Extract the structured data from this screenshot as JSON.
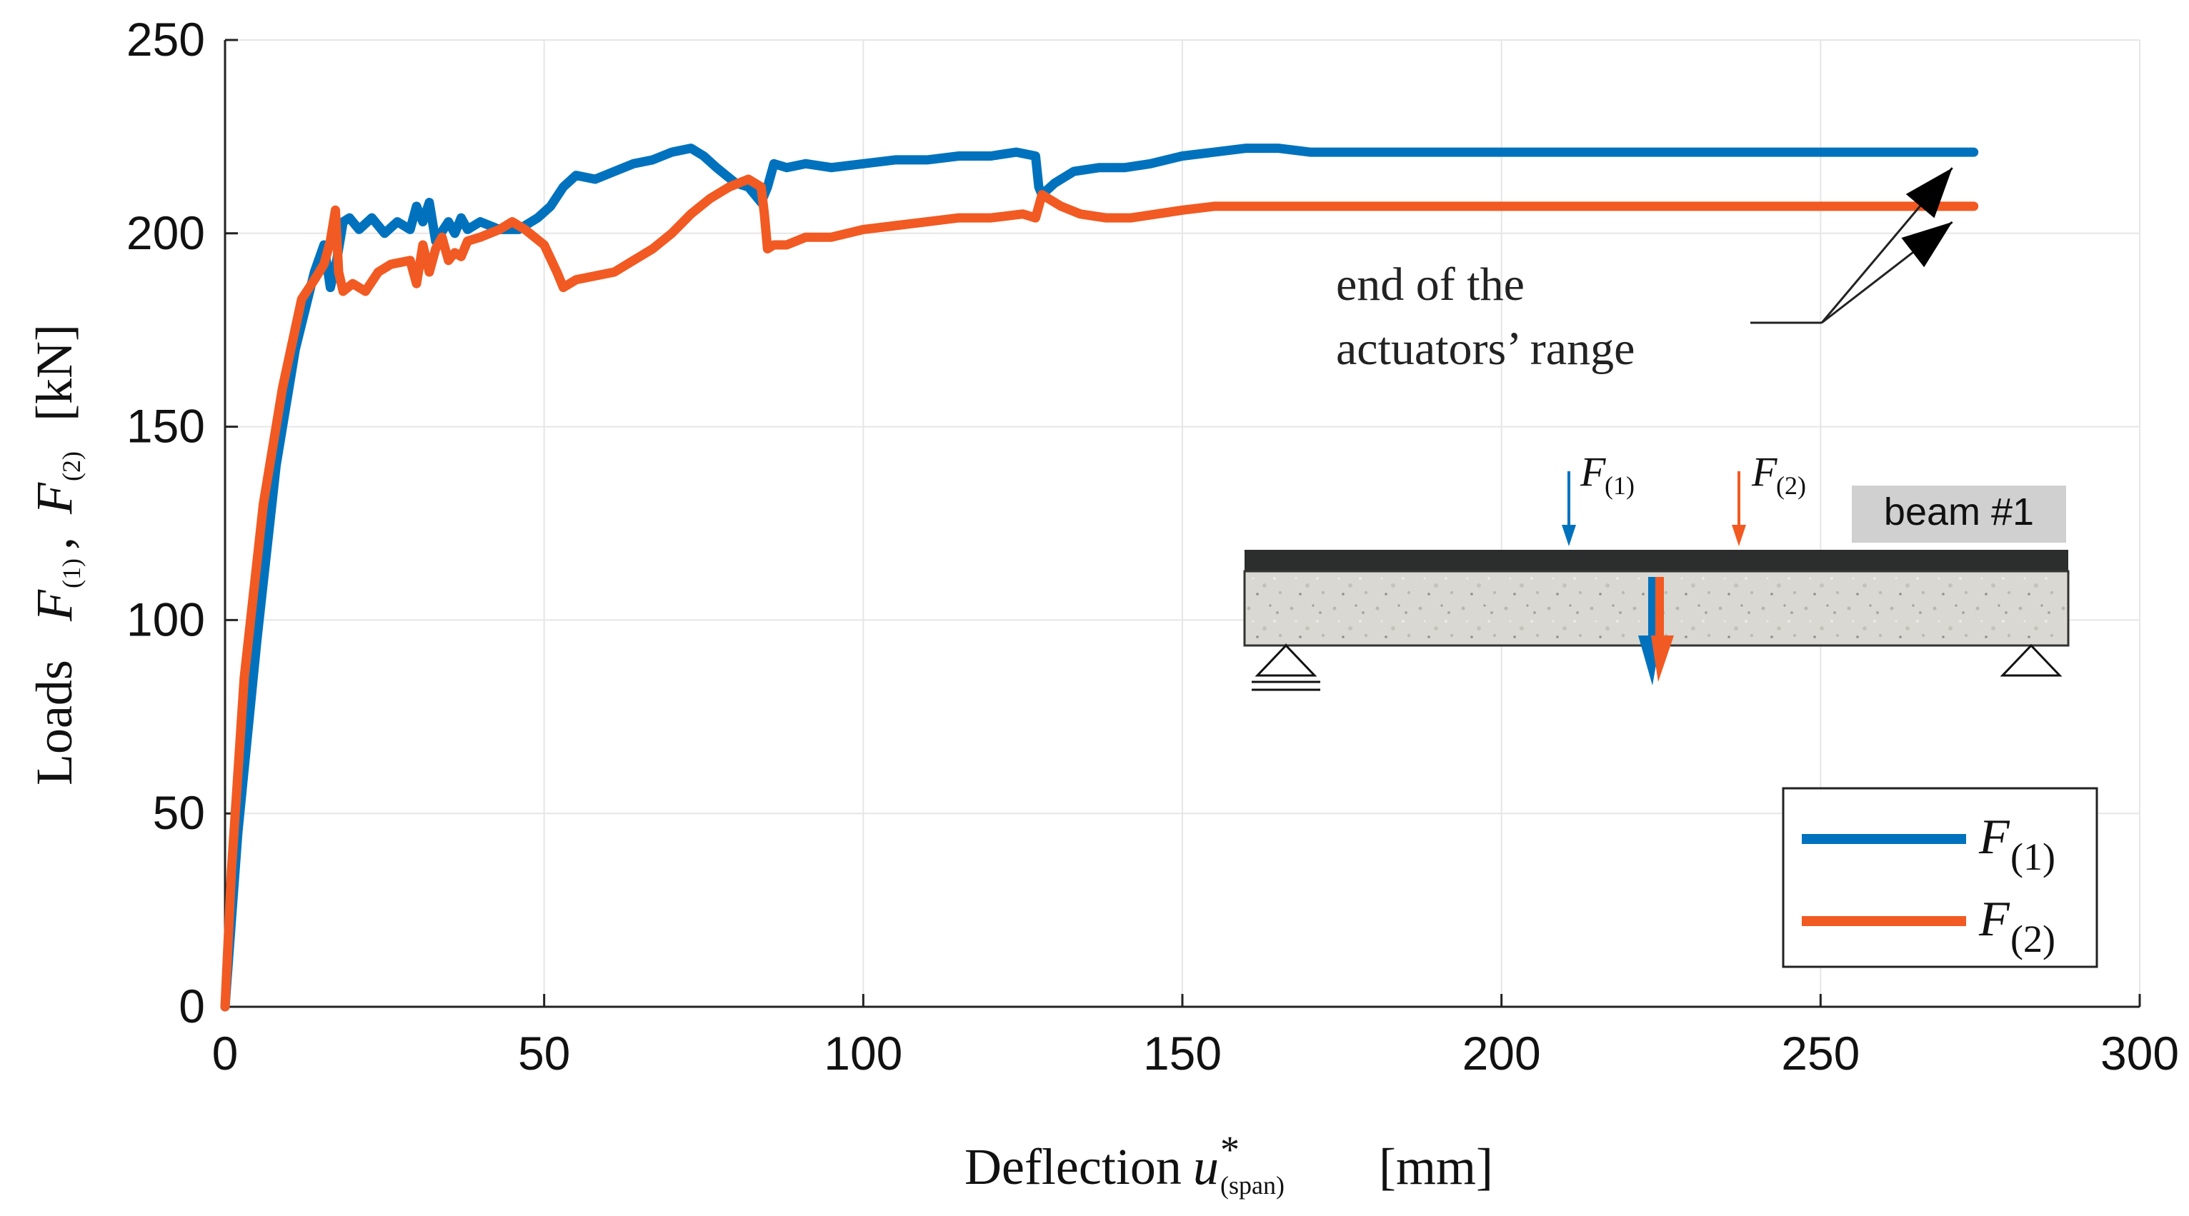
{
  "chart_data": {
    "type": "line",
    "title": "",
    "xlabel": {
      "text": "Deflection",
      "var": "u",
      "sup": "*",
      "sub": "(span)",
      "unit": "[mm]"
    },
    "ylabel": {
      "prefix": "Loads",
      "f1_var": "F",
      "f1_sub": "(1)",
      "separator": ",",
      "f2_var": "F",
      "f2_sub": "(2)",
      "unit": "[kN]"
    },
    "xlim": [
      0,
      300
    ],
    "ylim": [
      0,
      250
    ],
    "xticks": [
      0,
      50,
      100,
      150,
      200,
      250,
      300
    ],
    "yticks": [
      0,
      50,
      100,
      150,
      200,
      250
    ],
    "grid": true,
    "legend_position": "bottom-right",
    "series": [
      {
        "name": "F(1)",
        "legend_var": "F",
        "legend_sub": "(1)",
        "color": "#0072BD",
        "x": [
          0,
          2,
          5,
          8,
          11,
          14,
          15.5,
          16.5,
          17.5,
          18.5,
          19.5,
          21,
          23,
          25,
          27,
          29,
          30,
          31,
          32,
          33,
          35,
          36,
          37,
          38,
          40,
          43,
          46,
          49,
          51,
          53,
          55,
          58,
          61,
          64,
          67,
          70,
          73,
          75,
          77,
          80,
          82,
          84,
          85,
          86,
          88,
          91,
          95,
          100,
          105,
          110,
          115,
          120,
          124,
          127,
          127.5,
          128,
          130,
          133,
          137,
          141,
          145,
          150,
          155,
          160,
          165,
          170,
          175,
          200,
          225,
          250,
          274
        ],
        "values": [
          0,
          45,
          95,
          140,
          170,
          190,
          197,
          186,
          193,
          203,
          204,
          201,
          204,
          200,
          203,
          201,
          207,
          203,
          208,
          198,
          203,
          200,
          204,
          201,
          203,
          201,
          201,
          204,
          207,
          212,
          215,
          214,
          216,
          218,
          219,
          221,
          222,
          220,
          217,
          213,
          212,
          208,
          212,
          218,
          217,
          218,
          217,
          218,
          219,
          219,
          220,
          220,
          221,
          220,
          212,
          210,
          213,
          216,
          217,
          217,
          218,
          220,
          221,
          222,
          222,
          221,
          221,
          221,
          221,
          221,
          221
        ]
      },
      {
        "name": "F(2)",
        "legend_var": "F",
        "legend_sub": "(2)",
        "color": "#F15A22",
        "x": [
          0,
          1,
          3,
          6,
          9,
          12,
          14,
          15.5,
          16.5,
          17.3,
          17.8,
          18.5,
          20,
          22,
          24,
          26,
          29,
          30,
          31,
          32,
          33,
          34,
          35,
          36,
          37,
          38,
          40,
          43,
          45,
          47,
          50,
          52,
          53,
          55,
          58,
          61,
          64,
          67,
          70,
          73,
          76,
          79,
          82,
          84,
          84.5,
          85,
          86,
          88,
          91,
          95,
          100,
          105,
          110,
          115,
          120,
          125,
          127,
          128,
          129,
          131,
          134,
          138,
          142,
          146,
          150,
          155,
          160,
          165,
          170,
          200,
          225,
          250,
          274
        ],
        "values": [
          0,
          35,
          85,
          130,
          160,
          183,
          188,
          192,
          198,
          206,
          190,
          185,
          187,
          185,
          190,
          192,
          193,
          187,
          197,
          190,
          196,
          199,
          193,
          195,
          194,
          198,
          199,
          201,
          203,
          201,
          197,
          190,
          186,
          188,
          189,
          190,
          193,
          196,
          200,
          205,
          209,
          212,
          214,
          212,
          205,
          196,
          197,
          197,
          199,
          199,
          201,
          202,
          203,
          204,
          204,
          205,
          204,
          210,
          209,
          207,
          205,
          204,
          204,
          205,
          206,
          207,
          207,
          207,
          207,
          207,
          207,
          207,
          207
        ]
      }
    ],
    "annotation": {
      "line1": "end of the",
      "line2": "actuators’ range"
    },
    "inset": {
      "badge": "beam #1",
      "f1_var": "F",
      "f1_sub": "(1)",
      "f2_var": "F",
      "f2_sub": "(2)"
    }
  }
}
